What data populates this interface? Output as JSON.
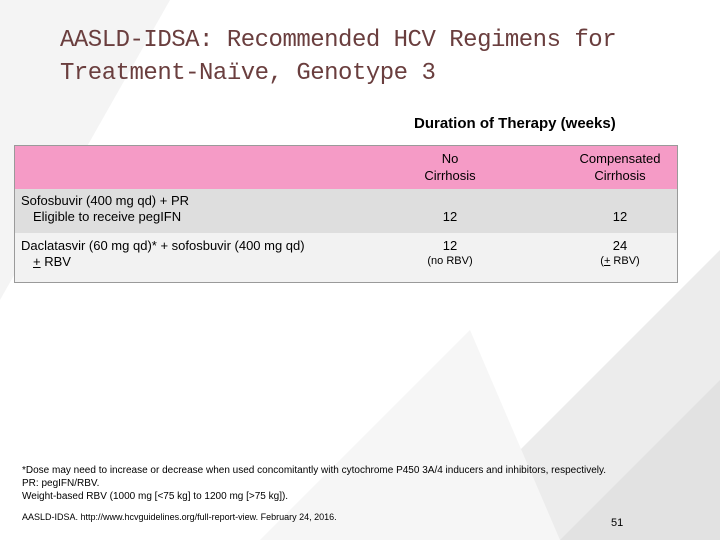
{
  "slide": {
    "title_line1": "AASLD-IDSA: Recommended HCV Regimens for",
    "title_line2": "Treatment-Naïve, Genotype 3",
    "duration_heading": "Duration of Therapy (weeks)"
  },
  "table": {
    "col_no_cirrhosis_line1": "No",
    "col_no_cirrhosis_line2": "Cirrhosis",
    "col_compensated_line1": "Compensated",
    "col_compensated_line2": "Cirrhosis",
    "rows": [
      {
        "regimen_line1": "Sofosbuvir (400 mg qd) + PR",
        "regimen_line2": "Eligible to receive pegIFN",
        "no_cirrhosis": "12",
        "compensated": "12"
      },
      {
        "regimen_line1": "Daclatasvir (60 mg qd)* + sofosbuvir (400 mg qd)",
        "regimen_line2_symbol": "+",
        "regimen_line2_rest": " RBV",
        "no_cirrhosis": "12",
        "no_cirrhosis_note": "(no RBV)",
        "compensated": "24",
        "compensated_note_open": "(",
        "compensated_note_symbol": "+",
        "compensated_note_rest": " RBV)"
      }
    ]
  },
  "footnotes": {
    "line1": "*Dose may need to increase or decrease when used concomitantly with cytochrome P450 3A/4 inducers and inhibitors, respectively.",
    "line2": "PR: pegIFN/RBV.",
    "line3": "Weight-based RBV (1000 mg [<75 kg] to 1200 mg [>75 kg])."
  },
  "citation": "AASLD-IDSA. http://www.hcvguidelines.org/full-report-view. February 24, 2016.",
  "page_number": "51",
  "colors": {
    "header_pink": "#f59bc6",
    "row1_gray": "#dedede",
    "row2_light": "#f2f2f2",
    "title_color": "#6a3e3e"
  }
}
